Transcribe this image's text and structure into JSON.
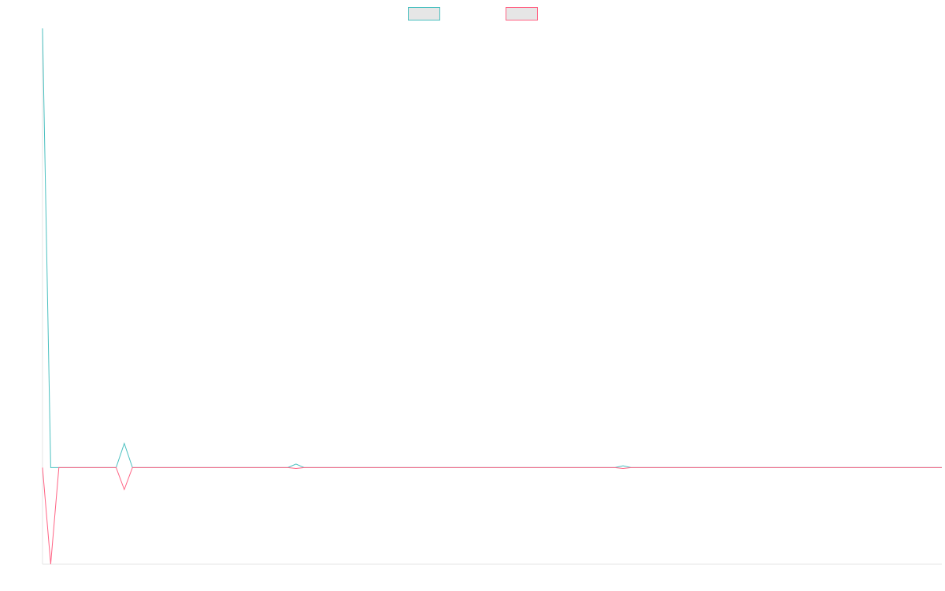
{
  "chart_data": {
    "type": "line",
    "title": "",
    "xlabel": "",
    "ylabel": "",
    "legend": {
      "position": "top-center",
      "swatch_fill": "#e6e6e6"
    },
    "grid": false,
    "x": [
      0,
      1,
      2,
      3,
      4,
      5,
      6,
      7,
      8,
      9,
      10,
      11,
      12,
      13,
      14,
      15,
      16,
      17,
      18,
      19,
      20,
      21,
      22,
      23,
      24,
      25,
      26,
      27,
      28,
      29,
      30,
      31,
      32,
      33,
      34,
      35,
      36,
      37,
      38,
      39,
      40,
      41,
      42,
      43,
      44,
      45,
      46,
      47,
      48,
      49,
      50,
      51,
      52,
      53,
      54,
      55,
      56,
      57,
      58,
      59,
      60,
      61,
      62,
      63,
      64,
      65,
      66,
      67,
      68,
      69,
      70,
      71,
      72,
      73,
      74,
      75,
      76,
      77,
      78,
      79,
      80,
      81,
      82,
      83,
      84,
      85,
      86,
      87,
      88,
      89,
      90,
      91,
      92,
      93,
      94,
      95,
      96,
      97,
      98,
      99,
      100,
      101,
      102,
      103,
      104,
      105,
      106,
      107,
      108,
      109,
      110
    ],
    "xlim": [
      0,
      110
    ],
    "ylim": [
      -22,
      100
    ],
    "series": [
      {
        "color": "#4bc0c0",
        "values": [
          100,
          0,
          0,
          0,
          0,
          0,
          0,
          0,
          0,
          0,
          5.5,
          0,
          0,
          0,
          0,
          0,
          0,
          0,
          0,
          0,
          0,
          0,
          0,
          0,
          0,
          0,
          0,
          0,
          0,
          0,
          0,
          0.8,
          0,
          0,
          0,
          0,
          0,
          0,
          0,
          0,
          0,
          0,
          0,
          0,
          0,
          0,
          0,
          0,
          0,
          0,
          0,
          0,
          0,
          0,
          0,
          0,
          0,
          0,
          0,
          0,
          0,
          0,
          0,
          0,
          0,
          0,
          0,
          0,
          0,
          0,
          0,
          0.4,
          0,
          0,
          0,
          0,
          0,
          0,
          0,
          0,
          0,
          0,
          0,
          0,
          0,
          0,
          0,
          0,
          0,
          0,
          0,
          0,
          0,
          0,
          0,
          0,
          0,
          0,
          0,
          0,
          0,
          0,
          0,
          0,
          0,
          0,
          0,
          0,
          0,
          0,
          0
        ]
      },
      {
        "color": "#ff6384",
        "values": [
          0,
          -22,
          0,
          0,
          0,
          0,
          0,
          0,
          0,
          0,
          -5,
          0,
          0,
          0,
          0,
          0,
          0,
          0,
          0,
          0,
          0,
          0,
          0,
          0,
          0,
          0,
          0,
          0,
          0,
          0,
          0,
          -0.2,
          0,
          0,
          0,
          0,
          0,
          0,
          0,
          0,
          0,
          0,
          0,
          0,
          0,
          0,
          0,
          0,
          0,
          0,
          0,
          0,
          0,
          0,
          0,
          0,
          0,
          0,
          0,
          0,
          0,
          0,
          0,
          0,
          0,
          0,
          0,
          0,
          0,
          0,
          0,
          -0.2,
          0,
          0,
          0,
          0,
          0,
          0,
          0,
          0,
          0,
          0,
          0,
          0,
          0,
          0,
          0,
          0,
          0,
          0,
          0,
          0,
          0,
          0,
          0,
          0,
          0,
          0,
          0,
          0,
          0,
          0,
          0,
          0,
          0,
          0,
          0,
          0,
          0,
          0,
          0
        ]
      }
    ]
  }
}
